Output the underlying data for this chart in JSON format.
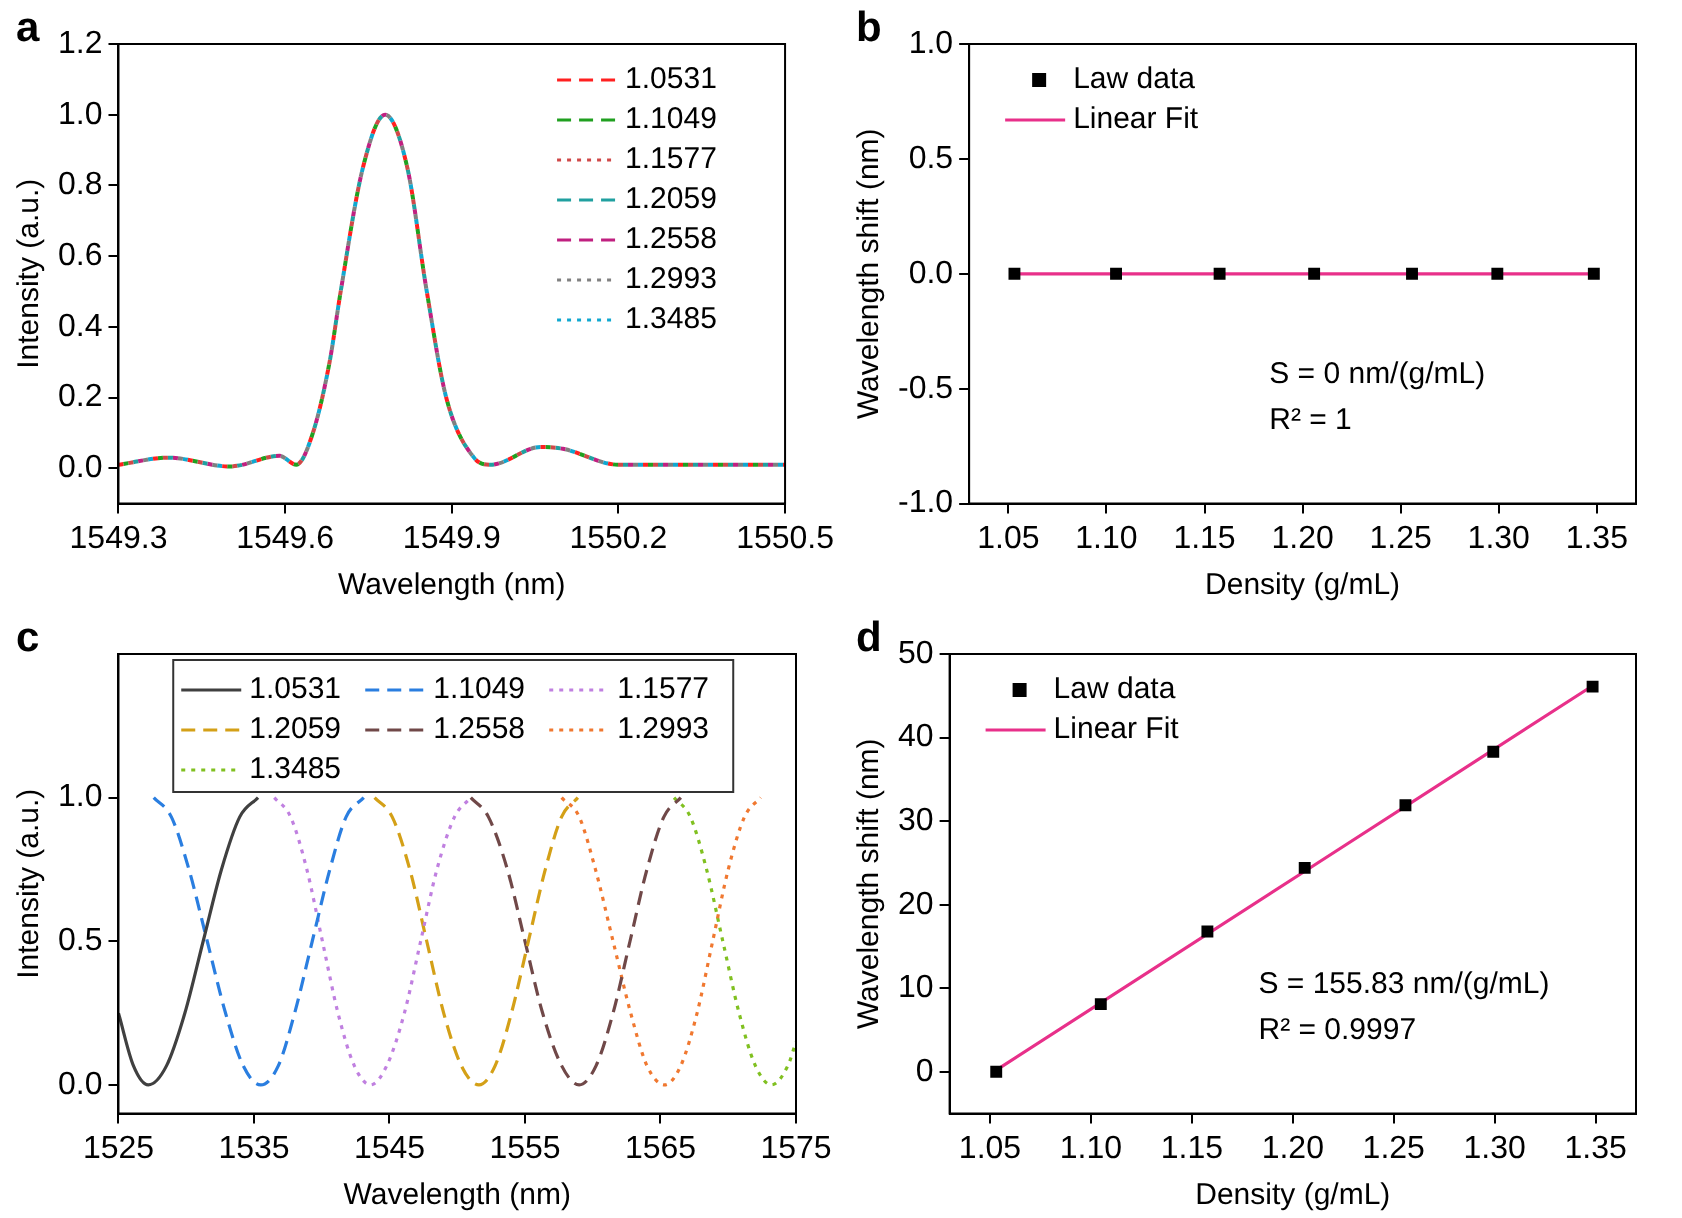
{
  "chart_data": [
    {
      "type": "line",
      "title": "a",
      "xlabel": "Wavelength (nm)",
      "ylabel": "Intensity (a.u.)",
      "xlim": [
        1549.3,
        1550.5
      ],
      "xticks": [
        1549.3,
        1549.6,
        1549.9,
        1550.2,
        1550.5
      ],
      "ylim": [
        -0.1,
        1.2
      ],
      "yticks": [
        {
          "value": 0,
          "label": "0.0"
        },
        0.2,
        0.4,
        0.6,
        0.8,
        {
          "value": 1,
          "label": "1.0"
        },
        1.2
      ],
      "grid": false,
      "legend": "top right",
      "x": [
        1549.3,
        1549.39,
        1549.5,
        1549.59,
        1549.62,
        1549.65,
        1549.68,
        1549.7,
        1549.74,
        1549.78,
        1549.82,
        1549.855,
        1549.89,
        1549.94,
        1549.97,
        1550.06,
        1550.1,
        1550.2,
        1550.34,
        1550.5
      ],
      "series": [
        {
          "name": "1.0531",
          "color": "#ff2020",
          "line_style": "dashed",
          "values": [
            0.01,
            0.03,
            0.005,
            0.035,
            0.01,
            0.1,
            0.3,
            0.5,
            0.85,
            1.0,
            0.85,
            0.5,
            0.2,
            0.03,
            0.01,
            0.06,
            0.055,
            0.01,
            0.01,
            0.01
          ]
        },
        {
          "name": "1.1049",
          "color": "#20a020",
          "line_style": "dashed",
          "values": [
            0.01,
            0.03,
            0.005,
            0.035,
            0.01,
            0.1,
            0.3,
            0.5,
            0.85,
            1.0,
            0.85,
            0.5,
            0.2,
            0.03,
            0.01,
            0.06,
            0.055,
            0.01,
            0.01,
            0.01
          ]
        },
        {
          "name": "1.1577",
          "color": "#d04848",
          "line_style": "dotted",
          "values": [
            0.01,
            0.03,
            0.005,
            0.035,
            0.01,
            0.1,
            0.3,
            0.5,
            0.85,
            1.0,
            0.85,
            0.5,
            0.2,
            0.03,
            0.01,
            0.06,
            0.055,
            0.01,
            0.01,
            0.01
          ]
        },
        {
          "name": "1.2059",
          "color": "#20a0a0",
          "line_style": "dashed",
          "values": [
            0.01,
            0.03,
            0.005,
            0.035,
            0.01,
            0.1,
            0.3,
            0.5,
            0.85,
            1.0,
            0.85,
            0.5,
            0.2,
            0.03,
            0.01,
            0.06,
            0.055,
            0.01,
            0.01,
            0.01
          ]
        },
        {
          "name": "1.2558",
          "color": "#c02080",
          "line_style": "dashed",
          "values": [
            0.01,
            0.03,
            0.005,
            0.035,
            0.01,
            0.1,
            0.3,
            0.5,
            0.85,
            1.0,
            0.85,
            0.5,
            0.2,
            0.03,
            0.01,
            0.06,
            0.055,
            0.01,
            0.01,
            0.01
          ]
        },
        {
          "name": "1.2993",
          "color": "#808080",
          "line_style": "dotted",
          "values": [
            0.01,
            0.03,
            0.005,
            0.035,
            0.01,
            0.1,
            0.3,
            0.5,
            0.85,
            1.0,
            0.85,
            0.5,
            0.2,
            0.03,
            0.01,
            0.06,
            0.055,
            0.01,
            0.01,
            0.01
          ]
        },
        {
          "name": "1.3485",
          "color": "#10a8d0",
          "line_style": "dotted",
          "values": [
            0.01,
            0.03,
            0.005,
            0.035,
            0.01,
            0.1,
            0.3,
            0.5,
            0.85,
            1.0,
            0.85,
            0.5,
            0.2,
            0.03,
            0.01,
            0.06,
            0.055,
            0.01,
            0.01,
            0.01
          ]
        }
      ]
    },
    {
      "type": "scatter",
      "title": "b",
      "xlabel": "Density (g/mL)",
      "ylabel": "Wavelength shift (nm)",
      "xlim": [
        1.03,
        1.37
      ],
      "xticks": [
        1.05,
        {
          "value": 1.1,
          "label": "1.10"
        },
        1.15,
        {
          "value": 1.2,
          "label": "1.20"
        },
        1.25,
        {
          "value": 1.3,
          "label": "1.30"
        },
        1.35
      ],
      "ylim": [
        -1,
        1
      ],
      "yticks": [
        {
          "value": -1,
          "label": "-1.0"
        },
        -0.5,
        {
          "value": 0,
          "label": "0.0"
        },
        0.5,
        {
          "value": 1,
          "label": "1.0"
        }
      ],
      "grid": false,
      "legend": "top left",
      "x": [
        1.0531,
        1.1049,
        1.1577,
        1.2059,
        1.2558,
        1.2993,
        1.3485
      ],
      "annotations": [
        "S = 0 nm/(g/mL)",
        "R² = 1"
      ],
      "series": [
        {
          "name": "Law data",
          "color": "#000000",
          "marker": "square",
          "values": [
            0,
            0,
            0,
            0,
            0,
            0,
            0
          ]
        },
        {
          "name": "Linear Fit",
          "type": "line",
          "color": "#e8308a",
          "x": [
            1.0531,
            1.3485
          ],
          "values": [
            0,
            0
          ]
        }
      ]
    },
    {
      "type": "line",
      "title": "c",
      "xlabel": "Wavelength (nm)",
      "ylabel": "Intensity (a.u.)",
      "xlim": [
        1525,
        1575
      ],
      "xticks": [
        1525,
        1535,
        1545,
        1555,
        1565,
        1575
      ],
      "ylim": [
        -0.1,
        1.5
      ],
      "yticks": [
        {
          "value": 0,
          "label": "0.0"
        },
        0.5,
        {
          "value": 1,
          "label": "1.0"
        }
      ],
      "grid": false,
      "legend": "top",
      "series": [
        {
          "name": "1.0531",
          "color": "#404040",
          "line_style": "solid",
          "x": [
            1525,
            1526.1,
            1527.2,
            1528.55,
            1529.9,
            1531.25,
            1532.6,
            1533.95,
            1535.3
          ],
          "values": [
            0.25,
            0.067,
            0,
            0.067,
            0.25,
            0.5,
            0.75,
            0.933,
            1
          ]
        },
        {
          "name": "1.1049",
          "color": "#2a7ee0",
          "line_style": "dashed",
          "x": [
            1527.6,
            1528.9,
            1530.2,
            1531.55,
            1532.9,
            1534.2,
            1535.5,
            1536.8,
            1538.0,
            1539.3,
            1540.6,
            1541.8,
            1543.1
          ],
          "values": [
            1,
            0.933,
            0.75,
            0.5,
            0.25,
            0.067,
            0,
            0.067,
            0.25,
            0.5,
            0.75,
            0.933,
            1
          ]
        },
        {
          "name": "1.1577",
          "color": "#c080e0",
          "line_style": "dotted",
          "x": [
            1536.5,
            1537.7,
            1538.9,
            1540.05,
            1541.2,
            1542.4,
            1543.6,
            1544.8,
            1546.1,
            1547.3,
            1548.5,
            1549.8,
            1551.0
          ],
          "values": [
            1,
            0.933,
            0.75,
            0.5,
            0.25,
            0.067,
            0,
            0.067,
            0.25,
            0.5,
            0.75,
            0.933,
            1
          ]
        },
        {
          "name": "1.2059",
          "color": "#d4a017",
          "line_style": "dashed",
          "x": [
            1543.9,
            1545.2,
            1546.5,
            1547.75,
            1549.0,
            1550.3,
            1551.6,
            1552.8,
            1554.0,
            1555.25,
            1556.5,
            1557.7,
            1558.9
          ],
          "values": [
            1,
            0.933,
            0.75,
            0.5,
            0.25,
            0.067,
            0,
            0.067,
            0.25,
            0.5,
            0.75,
            0.933,
            1
          ]
        },
        {
          "name": "1.2558",
          "color": "#704848",
          "line_style": "dashed",
          "x": [
            1551.0,
            1552.3,
            1553.7,
            1555.0,
            1556.3,
            1557.7,
            1559.0,
            1560.25,
            1561.5,
            1562.75,
            1564.0,
            1565.25,
            1566.5
          ],
          "values": [
            1,
            0.933,
            0.75,
            0.5,
            0.25,
            0.067,
            0,
            0.067,
            0.25,
            0.5,
            0.75,
            0.933,
            1
          ]
        },
        {
          "name": "1.2993",
          "color": "#f07830",
          "line_style": "dotted",
          "x": [
            1557.7,
            1559.0,
            1560.2,
            1561.5,
            1562.8,
            1564.0,
            1565.3,
            1566.5,
            1567.7,
            1568.85,
            1570.0,
            1571.2,
            1572.4
          ],
          "values": [
            1,
            0.933,
            0.75,
            0.5,
            0.25,
            0.067,
            0,
            0.067,
            0.25,
            0.5,
            0.75,
            0.933,
            1
          ]
        },
        {
          "name": "1.3485",
          "color": "#80c020",
          "line_style": "dotted",
          "x": [
            1566.0,
            1567.2,
            1568.4,
            1569.6,
            1570.8,
            1572.0,
            1573.2,
            1574.4,
            1575
          ],
          "values": [
            1,
            0.933,
            0.75,
            0.5,
            0.25,
            0.067,
            0,
            0.067,
            0.15
          ]
        }
      ]
    },
    {
      "type": "scatter",
      "title": "d",
      "xlabel": "Density (g/mL)",
      "ylabel": "Wavelength shift (nm)",
      "xlim": [
        1.03,
        1.37
      ],
      "xticks": [
        1.05,
        {
          "value": 1.1,
          "label": "1.10"
        },
        1.15,
        {
          "value": 1.2,
          "label": "1.20"
        },
        1.25,
        {
          "value": 1.3,
          "label": "1.30"
        },
        1.35
      ],
      "ylim": [
        -5,
        50
      ],
      "yticks": [
        0,
        10,
        20,
        30,
        40,
        50
      ],
      "grid": false,
      "legend": "top left",
      "x": [
        1.0531,
        1.1049,
        1.1577,
        1.2059,
        1.2558,
        1.2993,
        1.3485
      ],
      "annotations": [
        "S = 155.83 nm/(g/mL)",
        "R² = 0.9997"
      ],
      "series": [
        {
          "name": "Law data",
          "color": "#000000",
          "marker": "square",
          "values": [
            0,
            8.1,
            16.8,
            24.4,
            31.9,
            38.3,
            46.1
          ]
        },
        {
          "name": "Linear Fit",
          "type": "line",
          "color": "#e8308a",
          "x": [
            1.0531,
            1.3485
          ],
          "values": [
            0.2,
            46.2
          ]
        }
      ]
    }
  ]
}
